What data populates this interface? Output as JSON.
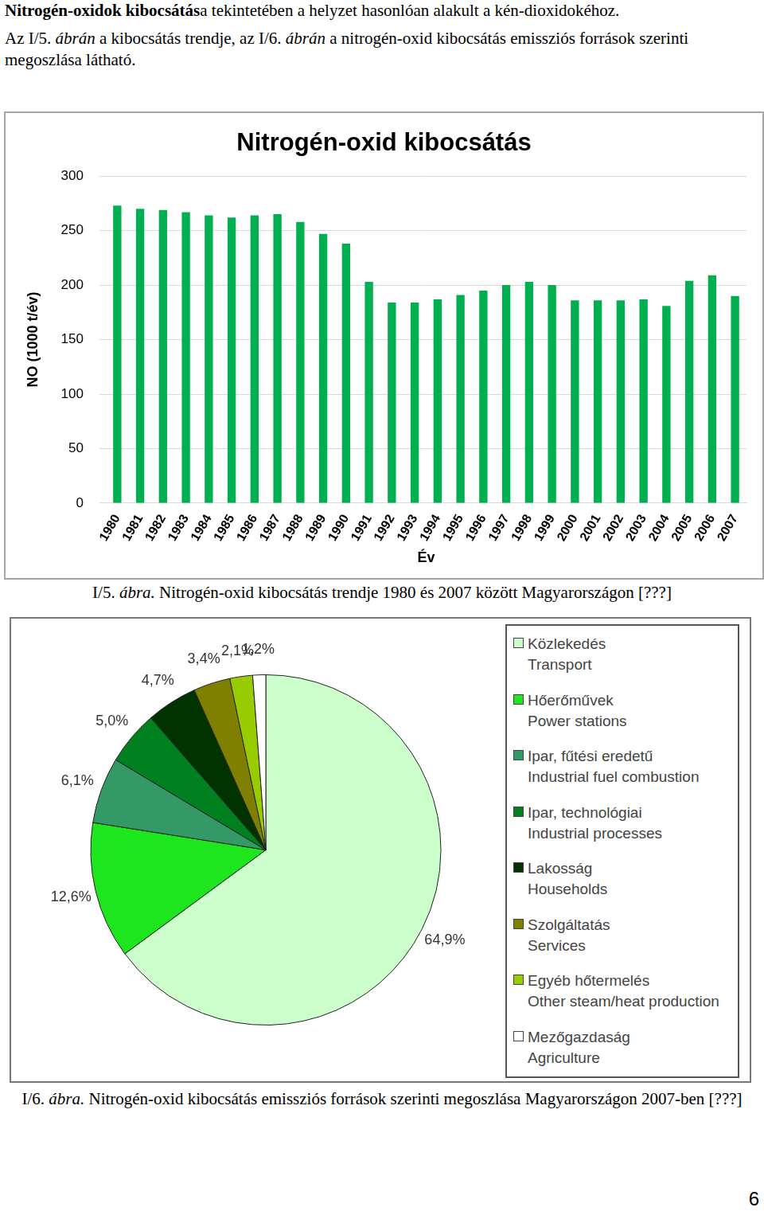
{
  "document": {
    "paragraphs": [
      [
        {
          "text": "Nitrogén-oxidok kibocsátás",
          "bold": true
        },
        {
          "text": "a tekintetében a helyzet hasonlóan alakult a kén-dioxidokéhoz."
        }
      ],
      [
        {
          "text": "Az I/5. "
        },
        {
          "text": "ábrán",
          "italic": true
        },
        {
          "text": " a kibocsátás trendje, az I/6. "
        },
        {
          "text": "ábrán",
          "italic": true
        },
        {
          "text": " a nitrogén-oxid kibocsátás emissziós források szerinti megoszlása látható."
        }
      ]
    ],
    "captions": [
      [
        {
          "text": "I/5. "
        },
        {
          "text": "ábra.",
          "italic": true
        },
        {
          "text": " Nitrogén-oxid kibocsátás trendje 1980 és 2007 között Magyarországon [???]"
        }
      ],
      [
        {
          "text": "I/6. "
        },
        {
          "text": "ábra.",
          "italic": true
        },
        {
          "text": " Nitrogén-oxid kibocsátás emissziós források szerinti megoszlása Magyarországon 2007-ben [???]"
        }
      ]
    ],
    "page_number": "6"
  },
  "chart_data": [
    {
      "type": "bar",
      "title": "Nitrogén-oxid kibocsátás",
      "x_label": "Év",
      "y_label": "NO (1000 t/év)",
      "categories": [
        "1980",
        "1981",
        "1982",
        "1983",
        "1984",
        "1985",
        "1986",
        "1987",
        "1988",
        "1989",
        "1990",
        "1991",
        "1992",
        "1993",
        "1994",
        "1995",
        "1996",
        "1997",
        "1998",
        "1999",
        "2000",
        "2001",
        "2002",
        "2003",
        "2004",
        "2005",
        "2006",
        "2007"
      ],
      "values": [
        273,
        270,
        269,
        267,
        264,
        262,
        264,
        265,
        258,
        247,
        238,
        203,
        184,
        184,
        187,
        191,
        195,
        200,
        203,
        200,
        186,
        186,
        186,
        187,
        181,
        204,
        209,
        190
      ],
      "color": "#00b050",
      "ylim": [
        0,
        300
      ],
      "yticks": [
        0,
        50,
        100,
        150,
        200,
        250,
        300
      ],
      "grid": true
    },
    {
      "type": "pie",
      "categories": [
        "Közlekedés\nTransport",
        "Hőerőművek\nPower stations",
        "Ipar, fűtési eredetű\nIndustrial fuel combustion",
        "Ipar, technológiai\nIndustrial processes",
        "Lakosság\nHouseholds",
        "Szolgáltatás\nServices",
        "Egyéb hőtermelés\nOther steam/heat production",
        "Mezőgazdaság\nAgriculture"
      ],
      "values": [
        64.9,
        12.6,
        6.1,
        5.0,
        4.7,
        3.4,
        2.1,
        1.2
      ],
      "value_labels": [
        "64,9%",
        "12,6%",
        "6,1%",
        "5,0%",
        "4,7%",
        "3,4%",
        "2,1%",
        "1,2%"
      ],
      "colors": [
        "#ccffcc",
        "#1ee61e",
        "#339966",
        "#00801f",
        "#003300",
        "#808000",
        "#99cc00",
        "#ffffff"
      ],
      "data_labels": true,
      "legend": "right"
    }
  ]
}
